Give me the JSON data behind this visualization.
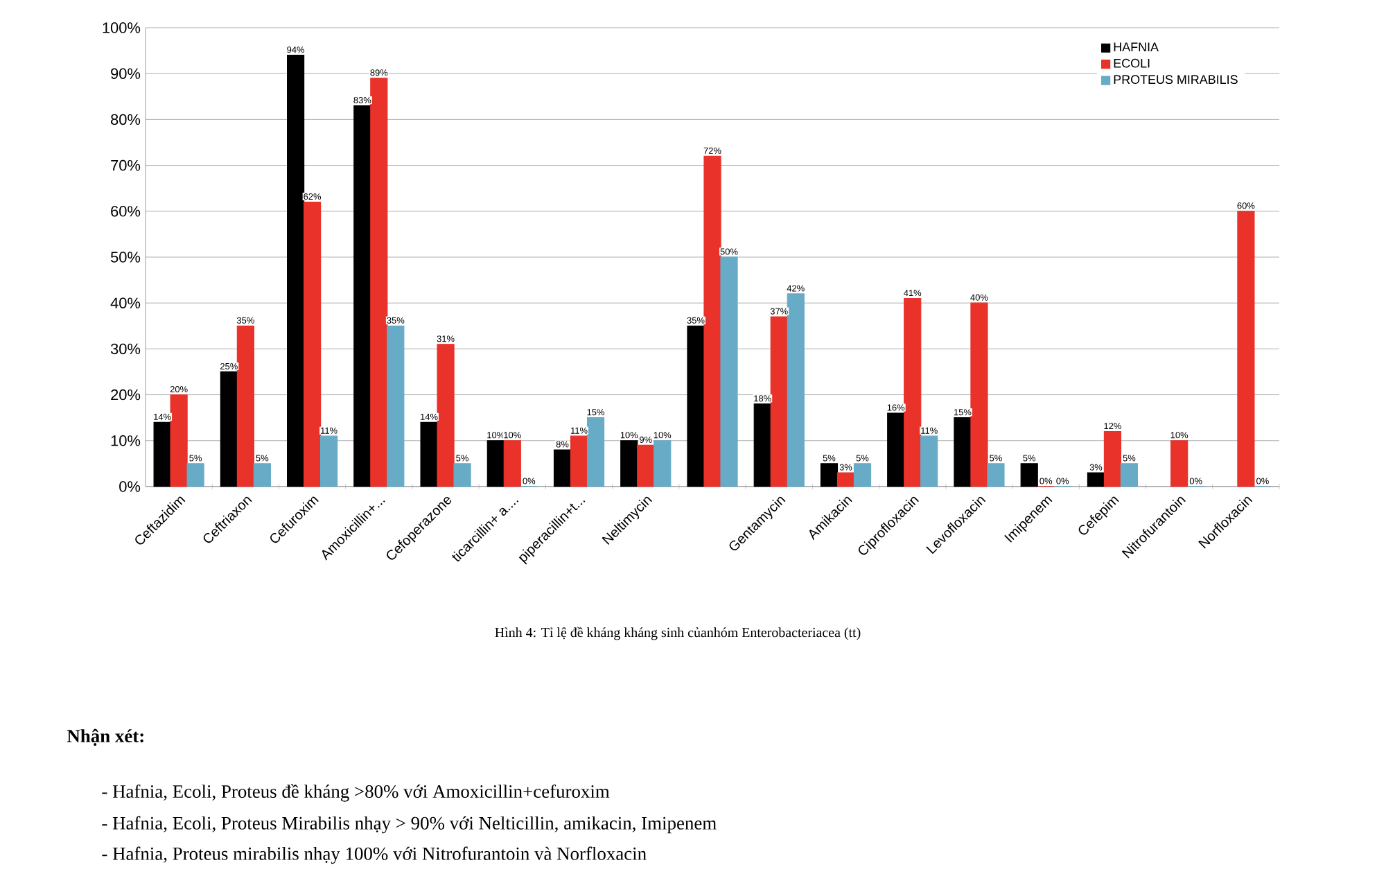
{
  "chart_data": {
    "type": "bar",
    "categories": [
      "Ceftazidim",
      "Ceftriaxon",
      "Cefuroxim",
      "Amoxicillin+...",
      "Cefoperazone",
      "ticarcillin+ a....",
      "piperacillin+t...",
      "Neltimycin",
      null,
      "Gentamycin",
      "Amikacin",
      "Ciprofloxacin",
      "Levofloxacin",
      "Imipenem",
      "Cefepim",
      "Nitrofurantoin",
      "Norfloxacin"
    ],
    "series": [
      {
        "name": "HAFNIA",
        "color": "#000000",
        "values": [
          14,
          25,
          94,
          83,
          14,
          10,
          8,
          10,
          35,
          18,
          5,
          16,
          15,
          5,
          3,
          null,
          null
        ],
        "value_labels": [
          "14%",
          "25%",
          "94%",
          "83%",
          "14%",
          "10%",
          "8%",
          "10%",
          "35%",
          "18%",
          "5%",
          "16%",
          "15%",
          "5%",
          "3%",
          null,
          null
        ]
      },
      {
        "name": "ECOLI",
        "color": "#e8322a",
        "values": [
          20,
          35,
          62,
          89,
          31,
          10,
          11,
          9,
          72,
          37,
          3,
          41,
          40,
          0,
          12,
          10,
          60
        ],
        "value_labels": [
          "20%",
          "35%",
          "62%",
          "89%",
          "31%",
          "10%",
          "11%",
          "9%",
          "72%",
          "37%",
          "3%",
          "41%",
          "40%",
          "0%",
          "12%",
          "10%",
          "60%"
        ]
      },
      {
        "name": "PROTEUS MIRABILIS",
        "color": "#68abc7",
        "values": [
          5,
          5,
          11,
          35,
          5,
          0,
          15,
          10,
          50,
          42,
          5,
          11,
          5,
          0,
          5,
          0,
          0
        ],
        "value_labels": [
          "5%",
          "5%",
          "11%",
          "35%",
          "5%",
          "0%",
          "15%",
          "10%",
          "50%",
          "42%",
          "5%",
          "11%",
          "5%",
          "0%",
          "5%",
          "0%",
          "0%"
        ]
      }
    ],
    "ylim": [
      0,
      100
    ],
    "yticks": [
      {
        "value": 0,
        "label": "0%"
      },
      {
        "value": 10,
        "label": "10%"
      },
      {
        "value": 20,
        "label": "20%"
      },
      {
        "value": 30,
        "label": "30%"
      },
      {
        "value": 40,
        "label": "40%"
      },
      {
        "value": 50,
        "label": "50%"
      },
      {
        "value": 60,
        "label": "60%"
      },
      {
        "value": 70,
        "label": "70%"
      },
      {
        "value": 80,
        "label": "80%"
      },
      {
        "value": 90,
        "label": "90%"
      },
      {
        "value": 100,
        "label": "100%"
      }
    ],
    "grid": "y",
    "legend": "top right",
    "annotations": [
      "Hình 4: Tỉ lệ đề kháng kháng sinh củanhóm Enterobacteriacea (tt)",
      "Nhận xét:",
      "-   Hafnia, Ecoli, Proteus đề kháng  >80%  với Amoxicillin+cefuroxim",
      "-   Hafnia, Ecoli, Proteus Mirabilis nhạy > 90% với Nelticillin, amikacin, Imipenem",
      "-   Hafnia, Proteus mirabilis nhạy 100% với Nitrofurantoin và Norfloxacin"
    ]
  }
}
